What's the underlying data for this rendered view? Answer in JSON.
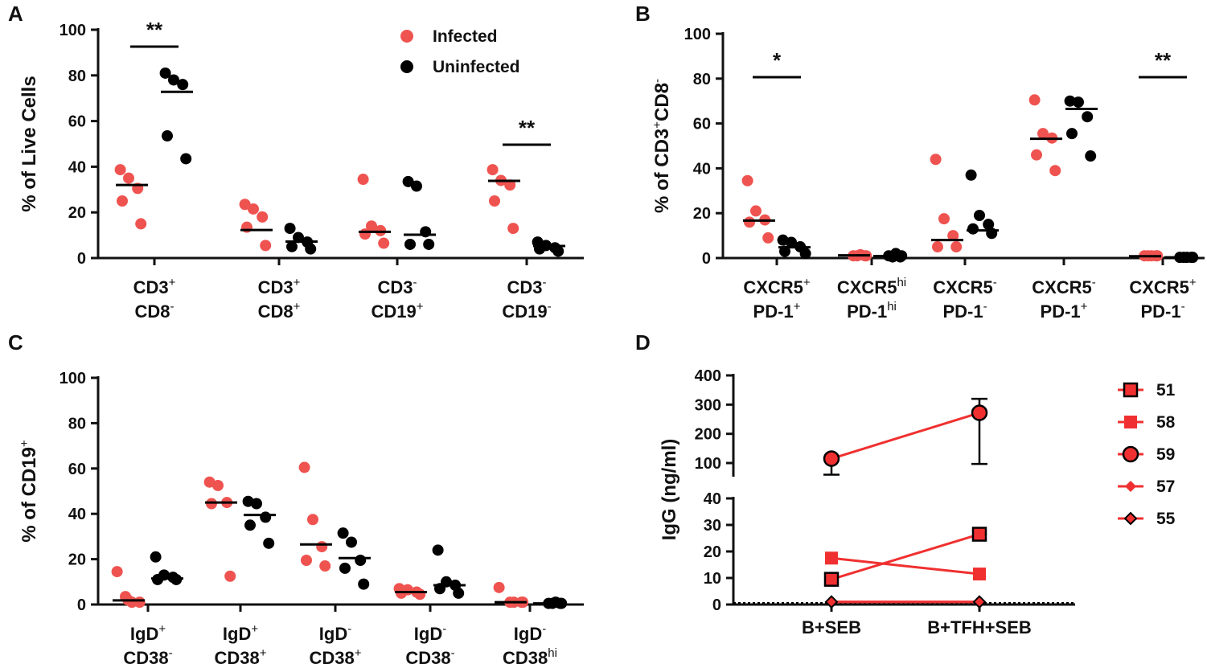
{
  "colors": {
    "infected": "#EF5350",
    "uninfected": "#000000",
    "line_d": "#F03030",
    "axis": "#111111"
  },
  "chart_data": [
    {
      "panel": "A",
      "type": "scatter",
      "ylabel": "% of Live Cells",
      "ylim": [
        0,
        100
      ],
      "yticks": [
        "0",
        "20",
        "40",
        "60",
        "80",
        "100"
      ],
      "legend": [
        "Infected",
        "Uninfected"
      ],
      "categories": [
        {
          "l1": "CD3",
          "s1": "+",
          "l2": "CD8",
          "s2": "-"
        },
        {
          "l1": "CD3",
          "s1": "+",
          "l2": "CD8",
          "s2": "+"
        },
        {
          "l1": "CD3",
          "s1": "-",
          "l2": "CD19",
          "s2": "+"
        },
        {
          "l1": "CD3",
          "s1": "-",
          "l2": "CD19",
          "s2": "-"
        }
      ],
      "series": [
        {
          "name": "Infected",
          "values": [
            [
              38.7,
              35,
              30.5,
              25,
              15
            ],
            [
              23.5,
              21.5,
              18,
              13.5,
              5.5
            ],
            [
              34.5,
              14,
              12,
              10.5,
              6.5
            ],
            [
              38.7,
              34,
              32,
              25,
              13
            ]
          ],
          "medians": [
            32,
            12.3,
            11.5,
            33.8
          ]
        },
        {
          "name": "Uninfected",
          "values": [
            [
              81,
              78,
              76,
              53.5,
              43.5
            ],
            [
              13,
              9,
              7,
              5,
              4
            ],
            [
              33.5,
              31.5,
              11.5,
              6,
              6
            ],
            [
              7,
              5.5,
              4.5,
              4,
              3
            ]
          ],
          "medians": [
            72.8,
            7.2,
            10.2,
            5.3
          ]
        }
      ],
      "significance": [
        {
          "category": 0,
          "label": "**"
        },
        {
          "category": 3,
          "label": "**"
        }
      ]
    },
    {
      "panel": "B",
      "type": "scatter",
      "ylabel": "% of CD3",
      "ylabel_sup1": "+",
      "ylabel_mid": "CD8",
      "ylabel_sup2": "-",
      "ylim": [
        0,
        100
      ],
      "yticks": [
        "0",
        "20",
        "40",
        "60",
        "80",
        "100"
      ],
      "categories": [
        {
          "l1": "CXCR5",
          "s1": "+",
          "l2": "PD-1",
          "s2": "+"
        },
        {
          "l1": "CXCR5",
          "s1": "hi",
          "l2": "PD-1",
          "s2": "hi"
        },
        {
          "l1": "CXCR5",
          "s1": "-",
          "l2": "PD-1",
          "s2": "-"
        },
        {
          "l1": "CXCR5",
          "s1": "-",
          "l2": "PD-1",
          "s2": "+"
        },
        {
          "l1": "CXCR5",
          "s1": "+",
          "l2": "PD-1",
          "s2": "-"
        }
      ],
      "series": [
        {
          "name": "Infected",
          "values": [
            [
              34.5,
              21,
              17,
              16,
              9
            ],
            [
              1.5,
              1,
              1,
              1,
              1
            ],
            [
              44,
              17.5,
              10,
              5,
              5
            ],
            [
              70.5,
              55.5,
              53.5,
              46,
              39
            ],
            [
              1,
              1,
              1,
              1,
              1
            ]
          ],
          "medians": [
            16.7,
            1.2,
            8,
            53.2,
            0.8
          ]
        },
        {
          "name": "Uninfected",
          "values": [
            [
              8,
              7,
              5,
              3,
              2
            ],
            [
              2,
              1,
              1,
              0.5,
              0.5
            ],
            [
              37,
              19,
              15,
              13,
              11
            ],
            [
              70,
              69.5,
              63,
              55.5,
              45.5
            ],
            [
              0.3,
              0.3,
              0.3,
              0.3,
              0.3
            ]
          ],
          "medians": [
            4.8,
            0.9,
            12.3,
            66.5,
            0.3
          ]
        }
      ],
      "significance": [
        {
          "category": 0,
          "label": "*"
        },
        {
          "category": 4,
          "label": "**"
        }
      ]
    },
    {
      "panel": "C",
      "type": "scatter",
      "ylabel": "% of CD19",
      "ylabel_sup1": "+",
      "ylim": [
        0,
        100
      ],
      "yticks": [
        "0",
        "20",
        "40",
        "60",
        "80",
        "100"
      ],
      "categories": [
        {
          "l1": "IgD",
          "s1": "+",
          "l2": "CD38",
          "s2": "-"
        },
        {
          "l1": "IgD",
          "s1": "+",
          "l2": "CD38",
          "s2": "+"
        },
        {
          "l1": "IgD",
          "s1": "-",
          "l2": "CD38",
          "s2": "+"
        },
        {
          "l1": "IgD",
          "s1": "-",
          "l2": "CD38",
          "s2": "-"
        },
        {
          "l1": "IgD",
          "s1": "-",
          "l2": "CD38",
          "s2": "hi"
        }
      ],
      "series": [
        {
          "name": "Infected",
          "values": [
            [
              14.5,
              3.5,
              2,
              1,
              1
            ],
            [
              54,
              52.5,
              45,
              44.5,
              12.5
            ],
            [
              60.5,
              37.5,
              25.5,
              19.5,
              17
            ],
            [
              7,
              6.5,
              5.5,
              5,
              4.5
            ],
            [
              7.5,
              1,
              1,
              1,
              1
            ]
          ],
          "medians": [
            1.8,
            45,
            26.5,
            5.5,
            1
          ]
        },
        {
          "name": "Uninfected",
          "values": [
            [
              21,
              13,
              12,
              11,
              11
            ],
            [
              45.5,
              44.5,
              38.5,
              35,
              27
            ],
            [
              31.5,
              27.5,
              19.5,
              16,
              9
            ],
            [
              24,
              10,
              8.5,
              7,
              5
            ],
            [
              1,
              0.5,
              0.5,
              0.5,
              0.5
            ]
          ],
          "medians": [
            11.5,
            39.5,
            20.5,
            8.5,
            0.5
          ]
        }
      ],
      "significance": []
    },
    {
      "panel": "D",
      "type": "line",
      "ylabel": "IgG (ng/ml)",
      "categories": [
        "B+SEB",
        "B+TFH+SEB"
      ],
      "yticks_upper": [
        "100",
        "200",
        "300",
        "400"
      ],
      "yticks_lower": [
        "0",
        "10",
        "20",
        "30",
        "40"
      ],
      "ylim_upper": [
        60,
        400
      ],
      "ylim_lower": [
        0,
        40
      ],
      "series": [
        {
          "name": "51",
          "marker": "square-open",
          "values": [
            9.5,
            26.5
          ]
        },
        {
          "name": "58",
          "marker": "square-filled",
          "values": [
            17.5,
            11.5
          ]
        },
        {
          "name": "59",
          "marker": "circle",
          "values": [
            115,
            272
          ],
          "error_low": [
            60,
            97
          ],
          "error_high": [
            115,
            320
          ]
        },
        {
          "name": "57",
          "marker": "diamond-filled",
          "values": [
            1,
            1
          ]
        },
        {
          "name": "55",
          "marker": "diamond-open",
          "values": [
            1,
            1
          ]
        }
      ]
    }
  ]
}
